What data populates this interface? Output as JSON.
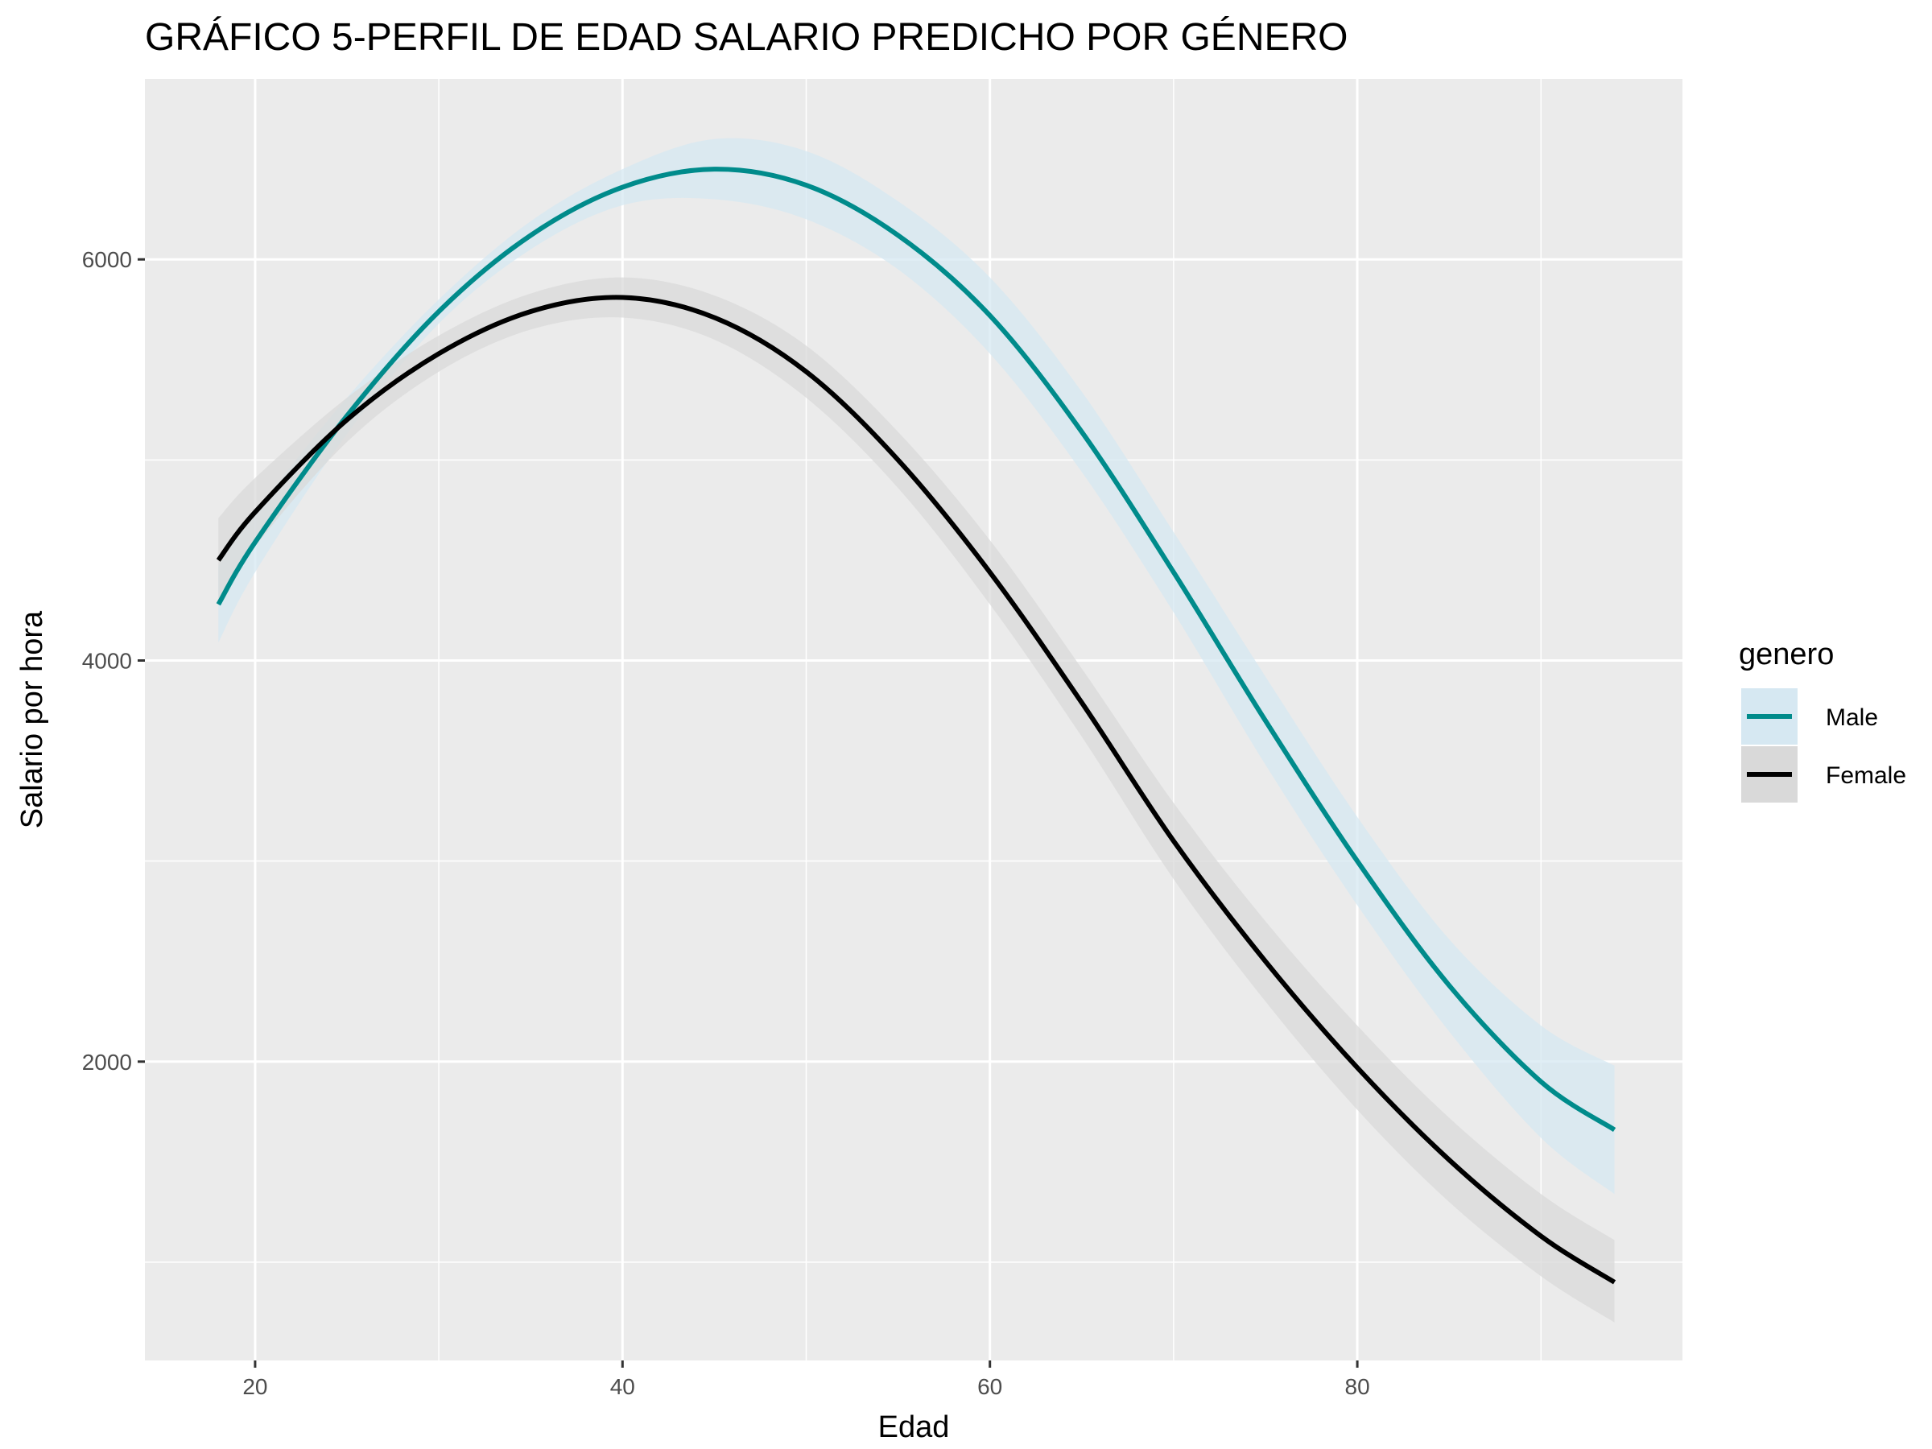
{
  "chart_data": {
    "type": "line",
    "title": "GRÁFICO 5-PERFIL DE EDAD SALARIO PREDICHO POR GÉNERO",
    "xlabel": "Edad",
    "ylabel": "Salario por hora",
    "xlim": [
      14,
      97.7
    ],
    "ylim": [
      510,
      6900
    ],
    "x_ticks": [
      20,
      40,
      60,
      80
    ],
    "y_ticks": [
      2000,
      4000,
      6000
    ],
    "x_minor_grid": [
      30,
      50,
      70,
      90
    ],
    "y_minor_grid": [
      3000,
      5000,
      1000
    ],
    "grid": true,
    "legend": {
      "title": "genero",
      "position": "right"
    },
    "series": [
      {
        "name": "Male",
        "color": "#008b8b",
        "ribbon_color": "#d6e8f2",
        "x": [
          18,
          20,
          25,
          30,
          35,
          40,
          45,
          50,
          55,
          60,
          65,
          70,
          75,
          80,
          85,
          90,
          94
        ],
        "y": [
          4280,
          4590,
          5220,
          5740,
          6120,
          6360,
          6450,
          6370,
          6120,
          5720,
          5140,
          4440,
          3700,
          3000,
          2380,
          1900,
          1660
        ],
        "lower": [
          4090,
          4440,
          5130,
          5680,
          6050,
          6270,
          6300,
          6200,
          5950,
          5530,
          4940,
          4240,
          3480,
          2780,
          2150,
          1620,
          1340
        ],
        "upper": [
          4470,
          4740,
          5310,
          5800,
          6190,
          6450,
          6600,
          6540,
          6290,
          5910,
          5340,
          4640,
          3920,
          3220,
          2610,
          2180,
          1980
        ]
      },
      {
        "name": "Female",
        "color": "#000000",
        "ribbon_color": "#d9d9d9",
        "x": [
          18,
          20,
          25,
          30,
          35,
          40,
          45,
          50,
          55,
          60,
          65,
          70,
          75,
          80,
          85,
          90,
          94
        ],
        "y": [
          4500,
          4740,
          5200,
          5530,
          5740,
          5810,
          5710,
          5440,
          5000,
          4440,
          3790,
          3100,
          2500,
          1970,
          1510,
          1130,
          900
        ],
        "lower": [
          4290,
          4570,
          5090,
          5440,
          5650,
          5710,
          5600,
          5310,
          4860,
          4280,
          3620,
          2910,
          2300,
          1760,
          1300,
          930,
          700
        ],
        "upper": [
          4710,
          4910,
          5310,
          5620,
          5830,
          5910,
          5820,
          5570,
          5140,
          4600,
          3960,
          3290,
          2700,
          2180,
          1720,
          1340,
          1110
        ]
      }
    ]
  }
}
